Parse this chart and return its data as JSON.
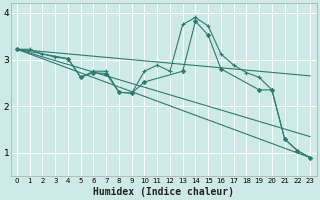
{
  "xlabel": "Humidex (Indice chaleur)",
  "bg_color": "#ceeae6",
  "grid_color": "#ffffff",
  "line_color": "#2d7a70",
  "xlim": [
    -0.5,
    23.5
  ],
  "ylim": [
    0.5,
    4.2
  ],
  "yticks": [
    1,
    2,
    3,
    4
  ],
  "xticks": [
    0,
    1,
    2,
    3,
    4,
    5,
    6,
    7,
    8,
    9,
    10,
    11,
    12,
    13,
    14,
    15,
    16,
    17,
    18,
    19,
    20,
    21,
    22,
    23
  ],
  "lines": [
    {
      "x": [
        0,
        1,
        2,
        3,
        4,
        5,
        6,
        7,
        8,
        9,
        10,
        11,
        12,
        13,
        14,
        15,
        16,
        17,
        18,
        19,
        20,
        21,
        22,
        23
      ],
      "y": [
        3.22,
        3.22,
        3.12,
        3.05,
        3.02,
        2.62,
        2.75,
        2.75,
        2.3,
        2.28,
        2.75,
        2.88,
        2.75,
        3.75,
        3.9,
        3.72,
        3.12,
        2.88,
        2.72,
        2.62,
        2.35,
        1.3,
        1.05,
        0.9
      ],
      "marker": "+"
    },
    {
      "x": [
        0,
        23
      ],
      "y": [
        3.22,
        2.65
      ],
      "marker": null
    },
    {
      "x": [
        0,
        23
      ],
      "y": [
        3.22,
        1.35
      ],
      "marker": null
    },
    {
      "x": [
        0,
        23
      ],
      "y": [
        3.22,
        0.9
      ],
      "marker": null
    },
    {
      "x": [
        0,
        4,
        5,
        6,
        7,
        8,
        9,
        10,
        13,
        14,
        15,
        16,
        19,
        20,
        21,
        22,
        23
      ],
      "y": [
        3.22,
        3.02,
        2.62,
        2.72,
        2.7,
        2.3,
        2.28,
        2.52,
        2.75,
        3.82,
        3.52,
        2.8,
        2.35,
        2.35,
        1.3,
        1.05,
        0.9
      ],
      "marker": "D"
    }
  ]
}
